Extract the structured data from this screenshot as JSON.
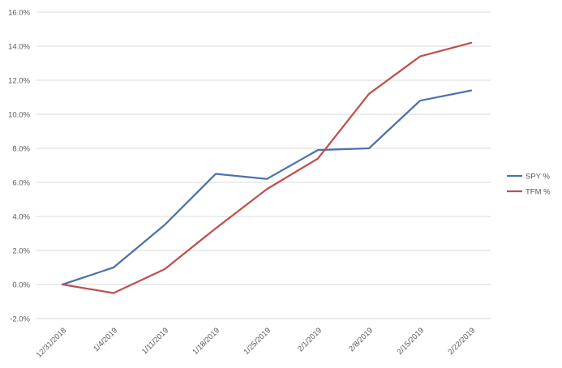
{
  "chart_data": {
    "type": "line",
    "categories": [
      "12/31/2018",
      "1/4/2019",
      "1/11/2019",
      "1/18/2019",
      "1/25/2019",
      "2/1/2019",
      "2/8/2019",
      "2/15/2019",
      "2/22/2019"
    ],
    "series": [
      {
        "name": "SPY %",
        "color": "#4a72b0",
        "values": [
          0.0,
          1.0,
          3.5,
          6.5,
          6.2,
          7.9,
          8.0,
          10.8,
          11.4
        ]
      },
      {
        "name": "TFM %",
        "color": "#c0504d",
        "values": [
          0.0,
          -0.5,
          0.9,
          3.3,
          5.6,
          7.4,
          11.2,
          13.4,
          14.2
        ]
      }
    ],
    "y_ticks": [
      "-2.0%",
      "0.0%",
      "2.0%",
      "4.0%",
      "6.0%",
      "8.0%",
      "10.0%",
      "12.0%",
      "14.0%",
      "16.0%"
    ],
    "ylim": [
      -2,
      16
    ],
    "grid": true,
    "legend_position": "right",
    "title": "",
    "xlabel": "",
    "ylabel": ""
  }
}
